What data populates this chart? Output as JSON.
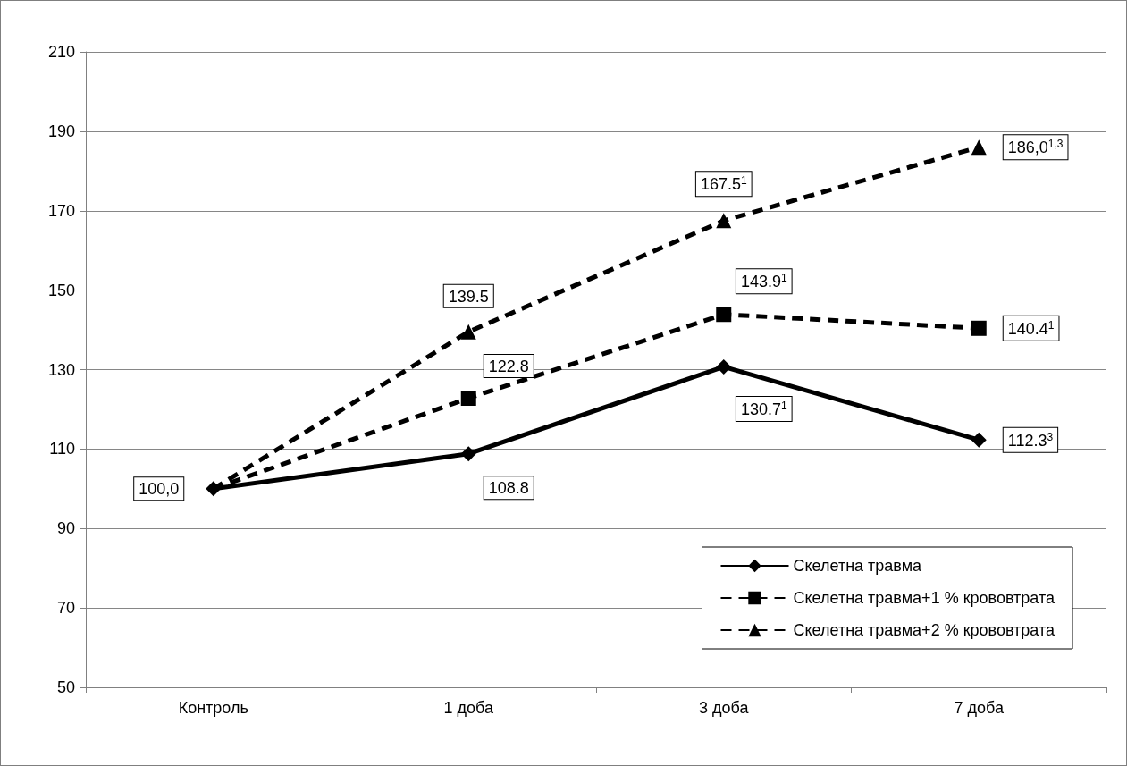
{
  "chart_data": {
    "type": "line",
    "categories": [
      "Контроль",
      "1 доба",
      "3 доба",
      "7 доба"
    ],
    "series": [
      {
        "name": "Скелетна травма",
        "color": "#000000",
        "marker": "diamond",
        "line_style": "solid",
        "values": [
          100.0,
          108.8,
          130.7,
          112.3
        ],
        "value_labels": [
          "100,0",
          "108.8",
          "130.7$^{1}$",
          "112.3$^{3}$"
        ]
      },
      {
        "name": "Скелетна травма+1 % крововтрата",
        "color": "#000000",
        "marker": "square",
        "line_style": "dashed",
        "values": [
          100.0,
          122.8,
          143.9,
          140.4
        ],
        "value_labels": [
          null,
          "122.8",
          "143.9$^{1}$",
          "140.4$^{1}$"
        ]
      },
      {
        "name": "Скелетна травма+2 % крововтрата",
        "color": "#000000",
        "marker": "triangle",
        "line_style": "dashed",
        "values": [
          100.0,
          139.5,
          167.5,
          186.0
        ],
        "value_labels": [
          null,
          "139.5",
          "167.5$^{1}$",
          "186,0$^{1,3}$"
        ]
      }
    ],
    "ylim": [
      50,
      210
    ],
    "yticks": [
      50,
      70,
      90,
      110,
      130,
      150,
      170,
      190,
      210
    ],
    "grid": "y",
    "legend": "bottom right"
  }
}
